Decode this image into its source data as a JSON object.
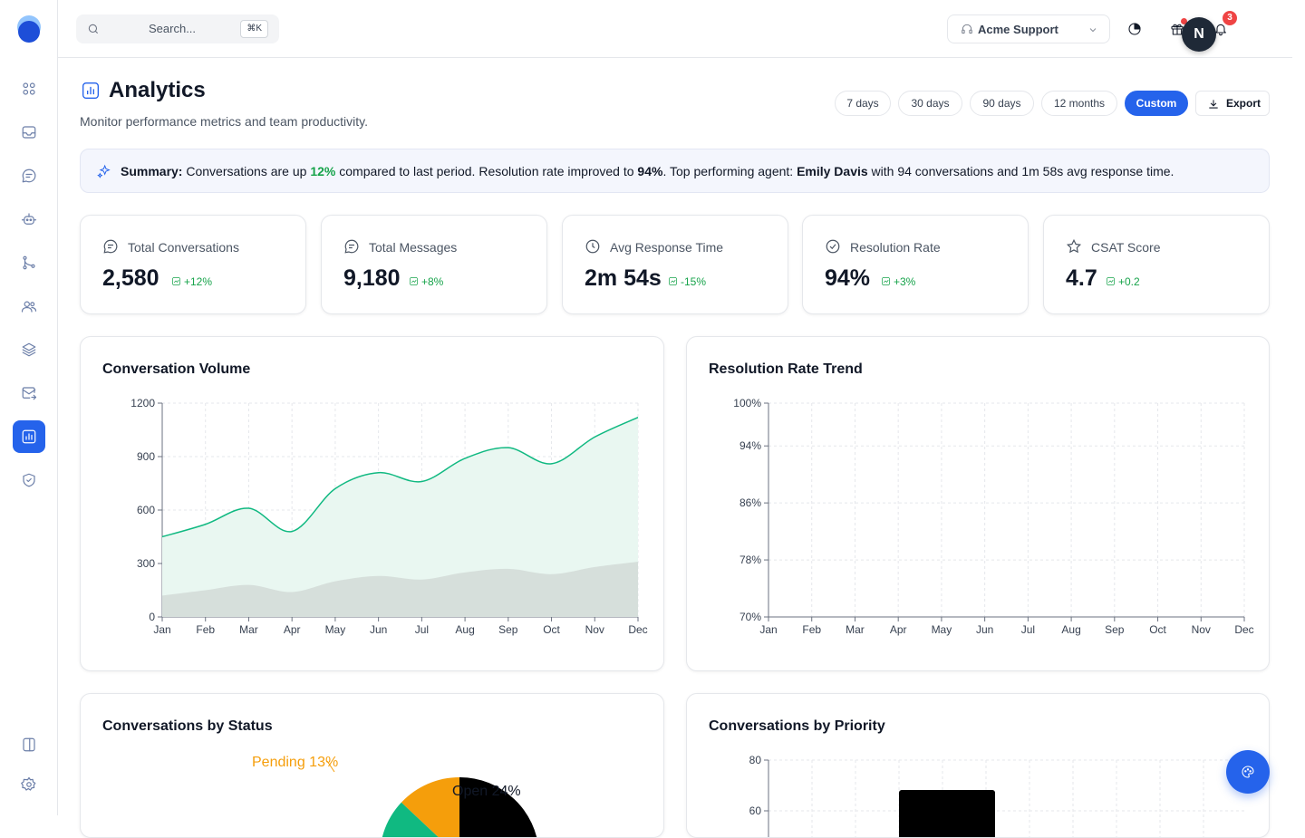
{
  "search": {
    "placeholder": "Search...",
    "shortcut": "⌘K"
  },
  "workspace": {
    "name": "Acme Support"
  },
  "notifications": {
    "count": "3"
  },
  "user": {
    "initial": "N"
  },
  "page": {
    "title": "Analytics",
    "subtitle": "Monitor performance metrics and team productivity."
  },
  "ranges": [
    "7 days",
    "30 days",
    "90 days",
    "12 months",
    "Custom"
  ],
  "active_range": "Custom",
  "export_label": "Export",
  "summary": {
    "lead": "Summary:",
    "t1": " Conversations are up ",
    "growth": "12%",
    "t2": " compared to last period. Resolution rate improved to ",
    "rate": "94%",
    "t3": ". Top performing agent: ",
    "agent": "Emily Davis",
    "t4": " with 94 conversations and 1m 58s avg response time."
  },
  "stats": [
    {
      "label": "Total Conversations",
      "value": "2,580",
      "delta": "+12%",
      "icon": "message-circle-icon"
    },
    {
      "label": "Total Messages",
      "value": "9,180",
      "delta": "+8%",
      "icon": "message-square-icon"
    },
    {
      "label": "Avg Response Time",
      "value": "2m 54s",
      "delta": "-15%",
      "icon": "clock-icon"
    },
    {
      "label": "Resolution Rate",
      "value": "94%",
      "delta": "+3%",
      "icon": "check-circle-icon"
    },
    {
      "label": "CSAT Score",
      "value": "4.7",
      "delta": "+0.2",
      "icon": "star-icon"
    }
  ],
  "colors": {
    "accent": "#2563eb",
    "positive": "#16a34a",
    "volume_line": "#10b981",
    "pending": "#f59e0b",
    "open": "#000000"
  },
  "chart_data": [
    {
      "type": "area",
      "title": "Conversation Volume",
      "categories": [
        "Jan",
        "Feb",
        "Mar",
        "Apr",
        "May",
        "Jun",
        "Jul",
        "Aug",
        "Sep",
        "Oct",
        "Nov",
        "Dec"
      ],
      "ylim": [
        0,
        1200
      ],
      "yticks": [
        0,
        300,
        600,
        900,
        1200
      ],
      "grid": true,
      "series": [
        {
          "values": [
            450,
            520,
            610,
            480,
            720,
            810,
            760,
            890,
            950,
            860,
            1010,
            1120
          ]
        },
        {
          "values": [
            120,
            150,
            180,
            140,
            200,
            230,
            210,
            250,
            270,
            240,
            280,
            310
          ]
        }
      ]
    },
    {
      "type": "line",
      "title": "Resolution Rate Trend",
      "categories": [
        "Jan",
        "Feb",
        "Mar",
        "Apr",
        "May",
        "Jun",
        "Jul",
        "Aug",
        "Sep",
        "Oct",
        "Nov",
        "Dec"
      ],
      "ylim": [
        70,
        100
      ],
      "yticks": [
        "70%",
        "78%",
        "86%",
        "94%",
        "100%"
      ],
      "ytick_values": [
        70,
        78,
        86,
        94,
        100
      ],
      "grid": true,
      "series": []
    },
    {
      "type": "pie",
      "title": "Conversations by Status",
      "slices": [
        {
          "label": "Open",
          "value": 24
        },
        {
          "label": "Pending",
          "value": 13
        }
      ]
    },
    {
      "type": "bar",
      "title": "Conversations by Priority",
      "yticks": [
        60,
        80
      ],
      "grid": true
    }
  ]
}
